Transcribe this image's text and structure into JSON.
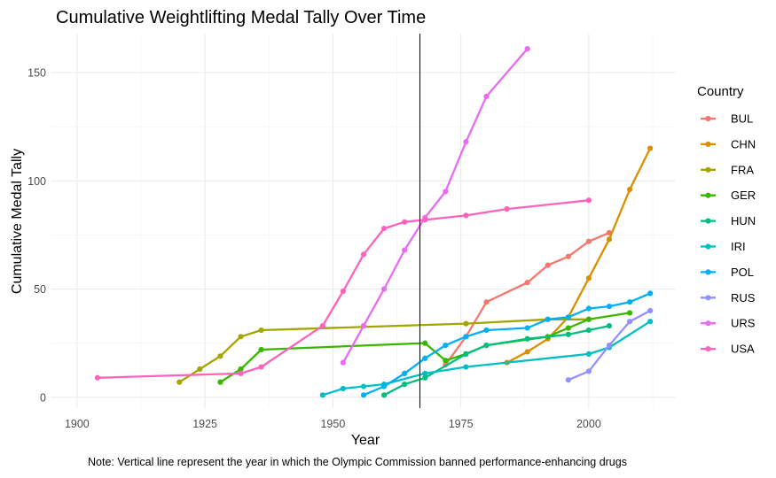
{
  "chart_data": {
    "type": "line",
    "title": "Cumulative Weightlifting Medal Tally Over Time",
    "xlabel": "Year",
    "ylabel": "Cumulative Medal Tally",
    "caption": "Note: Vertical line represent the year in which the Olympic Commission banned performance-enhancing drugs",
    "xlim": [
      1895,
      2017
    ],
    "ylim": [
      -5,
      168
    ],
    "x_ticks": [
      1900,
      1925,
      1950,
      1975,
      2000
    ],
    "y_ticks": [
      0,
      50,
      100,
      150
    ],
    "grid": true,
    "vline": 1967,
    "legend_title": "Country",
    "legend_position": "right",
    "series": [
      {
        "name": "BUL",
        "color": "#F8766D",
        "x": [
          1972,
          1976,
          1980,
          1988,
          1992,
          1996,
          2000,
          2004
        ],
        "y": [
          15,
          28,
          44,
          53,
          61,
          65,
          72,
          76
        ]
      },
      {
        "name": "CHN",
        "color": "#D89000",
        "x": [
          1984,
          1988,
          1992,
          1996,
          2000,
          2004,
          2008,
          2012
        ],
        "y": [
          16,
          21,
          27,
          37,
          55,
          73,
          96,
          115
        ]
      },
      {
        "name": "FRA",
        "color": "#A3A500",
        "x": [
          1920,
          1924,
          1928,
          1932,
          1936,
          1976,
          1992,
          2000
        ],
        "y": [
          7,
          13,
          19,
          28,
          31,
          34,
          36,
          36
        ]
      },
      {
        "name": "GER",
        "color": "#39B600",
        "x": [
          1928,
          1932,
          1936,
          1968,
          1972,
          1976,
          1980,
          1992,
          1996,
          2000,
          2008
        ],
        "y": [
          7,
          13,
          22,
          25,
          17,
          20,
          24,
          28,
          32,
          36,
          39
        ]
      },
      {
        "name": "HUN",
        "color": "#00BF7D",
        "x": [
          1960,
          1964,
          1968,
          1976,
          1980,
          1988,
          1996,
          2000,
          2004
        ],
        "y": [
          1,
          6,
          9,
          20,
          24,
          27,
          29,
          31,
          33
        ]
      },
      {
        "name": "IRI",
        "color": "#00BFC4",
        "x": [
          1948,
          1952,
          1956,
          1960,
          1968,
          1976,
          2000,
          2004,
          2012
        ],
        "y": [
          1,
          4,
          5,
          6,
          11,
          14,
          20,
          23,
          35
        ]
      },
      {
        "name": "POL",
        "color": "#00B0F6",
        "x": [
          1956,
          1960,
          1964,
          1968,
          1972,
          1976,
          1980,
          1988,
          1992,
          1996,
          2000,
          2004,
          2008,
          2012
        ],
        "y": [
          1,
          5,
          11,
          18,
          24,
          28,
          31,
          32,
          36,
          37,
          41,
          42,
          44,
          48
        ]
      },
      {
        "name": "RUS",
        "color": "#9590FF",
        "x": [
          1996,
          2000,
          2004,
          2008,
          2012
        ],
        "y": [
          8,
          12,
          24,
          35,
          40
        ]
      },
      {
        "name": "URS",
        "color": "#E76BF3",
        "x": [
          1952,
          1956,
          1960,
          1964,
          1968,
          1972,
          1976,
          1980,
          1988
        ],
        "y": [
          16,
          33,
          50,
          68,
          83,
          95,
          118,
          139,
          161
        ]
      },
      {
        "name": "USA",
        "color": "#FF62BC",
        "x": [
          1904,
          1932,
          1936,
          1948,
          1952,
          1956,
          1960,
          1964,
          1968,
          1976,
          1984,
          2000
        ],
        "y": [
          9,
          11,
          14,
          33,
          49,
          66,
          78,
          81,
          82,
          84,
          87,
          91
        ]
      }
    ]
  }
}
